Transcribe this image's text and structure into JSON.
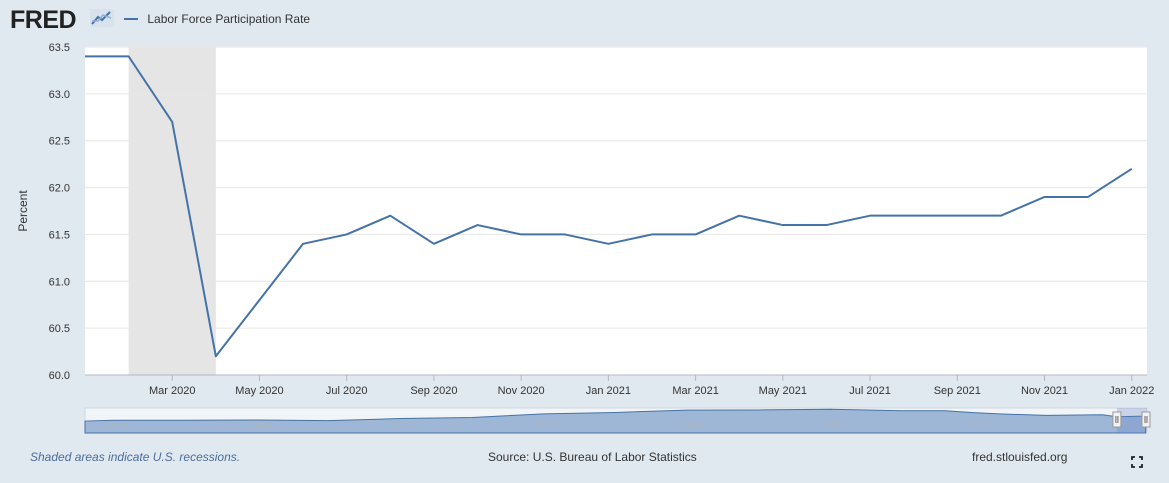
{
  "header": {
    "logo_text": "FRED",
    "logo_icon": "chart-graph-icon",
    "legend_label": "Labor Force Participation Rate"
  },
  "footer": {
    "recession_note": "Shaded areas indicate U.S. recessions.",
    "source": "Source: U.S. Bureau of Labor Statistics",
    "url": "fred.stlouisfed.org",
    "fullscreen_icon": "expand-icon"
  },
  "colors": {
    "series": "#4572a7",
    "background": "#e1e9f0",
    "plot": "#ffffff",
    "recession": "#e5e5e5",
    "navigator_fill": "#9fb7d6"
  },
  "chart_data": {
    "type": "line",
    "ylabel": "Percent",
    "xlabel": "",
    "ylim": [
      60.0,
      63.5
    ],
    "yticks": [
      "60.0",
      "60.5",
      "61.0",
      "61.5",
      "62.0",
      "62.5",
      "63.0",
      "63.5"
    ],
    "grid": true,
    "x": [
      "2020-01",
      "2020-02",
      "2020-03",
      "2020-04",
      "2020-05",
      "2020-06",
      "2020-07",
      "2020-08",
      "2020-09",
      "2020-10",
      "2020-11",
      "2020-12",
      "2021-01",
      "2021-02",
      "2021-03",
      "2021-04",
      "2021-05",
      "2021-06",
      "2021-07",
      "2021-08",
      "2021-09",
      "2021-10",
      "2021-11",
      "2021-12",
      "2022-01"
    ],
    "xtick_labels": [
      "Mar 2020",
      "May 2020",
      "Jul 2020",
      "Sep 2020",
      "Nov 2020",
      "Jan 2021",
      "Mar 2021",
      "May 2021",
      "Jul 2021",
      "Sep 2021",
      "Nov 2021",
      "Jan 2022"
    ],
    "xtick_dates": [
      "2020-03",
      "2020-05",
      "2020-07",
      "2020-09",
      "2020-11",
      "2021-01",
      "2021-03",
      "2021-05",
      "2021-07",
      "2021-09",
      "2021-11",
      "2022-01"
    ],
    "series": [
      {
        "name": "Labor Force Participation Rate",
        "values": [
          63.4,
          63.4,
          62.7,
          60.2,
          60.8,
          61.4,
          61.5,
          61.7,
          61.4,
          61.6,
          61.5,
          61.5,
          61.4,
          61.5,
          61.5,
          61.7,
          61.6,
          61.6,
          61.7,
          61.7,
          61.7,
          61.7,
          61.9,
          61.9,
          62.2
        ]
      }
    ],
    "recessions": [
      {
        "start": "2020-02",
        "end": "2020-04"
      }
    ],
    "navigator": {
      "labels": [
        "1950",
        "1960",
        "1970",
        "1980",
        "1990",
        "2000",
        "2010"
      ],
      "label_years": [
        1950,
        1960,
        1970,
        1980,
        1990,
        2000,
        2010
      ],
      "years": [
        1948,
        1950,
        1955,
        1960,
        1965,
        1970,
        1975,
        1980,
        1985,
        1990,
        1995,
        2000,
        2005,
        2008,
        2010,
        2012,
        2015,
        2019,
        2020,
        2022
      ],
      "values": [
        58.6,
        59.2,
        59.2,
        59.4,
        58.9,
        60.4,
        61.2,
        63.8,
        64.8,
        66.5,
        66.6,
        67.1,
        66.0,
        66.0,
        64.7,
        63.7,
        62.7,
        63.1,
        61.7,
        62.2
      ]
    }
  }
}
